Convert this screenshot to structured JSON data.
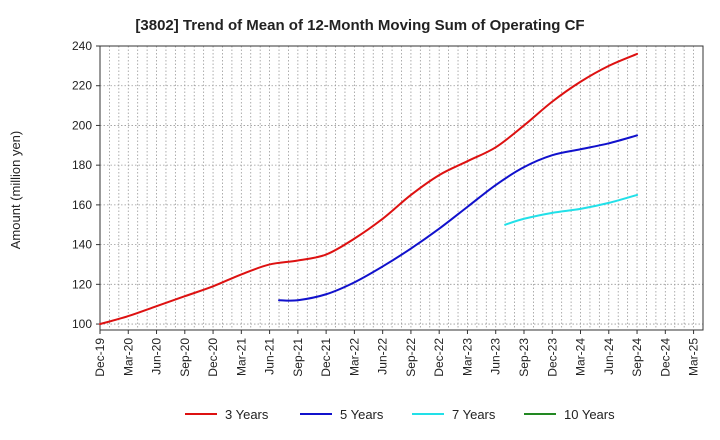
{
  "chart_data": {
    "type": "line",
    "title": "[3802]  Trend of Mean of 12-Month Moving Sum of Operating CF",
    "xlabel": "",
    "ylabel": "Amount (million yen)",
    "ylim": [
      97,
      240
    ],
    "yticks": [
      100,
      120,
      140,
      160,
      180,
      200,
      220,
      240
    ],
    "x_month_count": 64,
    "x_ticks": [
      {
        "label": "Dec-19",
        "index": 0
      },
      {
        "label": "Mar-20",
        "index": 3
      },
      {
        "label": "Jun-20",
        "index": 6
      },
      {
        "label": "Sep-20",
        "index": 9
      },
      {
        "label": "Dec-20",
        "index": 12
      },
      {
        "label": "Mar-21",
        "index": 15
      },
      {
        "label": "Jun-21",
        "index": 18
      },
      {
        "label": "Sep-21",
        "index": 21
      },
      {
        "label": "Dec-21",
        "index": 24
      },
      {
        "label": "Mar-22",
        "index": 27
      },
      {
        "label": "Jun-22",
        "index": 30
      },
      {
        "label": "Sep-22",
        "index": 33
      },
      {
        "label": "Dec-22",
        "index": 36
      },
      {
        "label": "Mar-23",
        "index": 39
      },
      {
        "label": "Jun-23",
        "index": 42
      },
      {
        "label": "Sep-23",
        "index": 45
      },
      {
        "label": "Dec-23",
        "index": 48
      },
      {
        "label": "Mar-24",
        "index": 51
      },
      {
        "label": "Jun-24",
        "index": 54
      },
      {
        "label": "Sep-24",
        "index": 57
      },
      {
        "label": "Dec-24",
        "index": 60
      },
      {
        "label": "Mar-25",
        "index": 63
      }
    ],
    "grid": true,
    "legend_position": "bottom",
    "series": [
      {
        "name": "3 Years",
        "color": "#dd1111",
        "points": [
          [
            0,
            100
          ],
          [
            3,
            104
          ],
          [
            6,
            109
          ],
          [
            9,
            114
          ],
          [
            12,
            119
          ],
          [
            15,
            125
          ],
          [
            18,
            130
          ],
          [
            21,
            132
          ],
          [
            24,
            135
          ],
          [
            27,
            143
          ],
          [
            30,
            153
          ],
          [
            33,
            165
          ],
          [
            36,
            175
          ],
          [
            39,
            182
          ],
          [
            42,
            189
          ],
          [
            45,
            200
          ],
          [
            48,
            212
          ],
          [
            51,
            222
          ],
          [
            54,
            230
          ],
          [
            57,
            236
          ]
        ]
      },
      {
        "name": "5 Years",
        "color": "#1111cc",
        "points": [
          [
            19,
            112
          ],
          [
            21,
            112
          ],
          [
            24,
            115
          ],
          [
            27,
            121
          ],
          [
            30,
            129
          ],
          [
            33,
            138
          ],
          [
            36,
            148
          ],
          [
            39,
            159
          ],
          [
            42,
            170
          ],
          [
            45,
            179
          ],
          [
            48,
            185
          ],
          [
            51,
            188
          ],
          [
            54,
            191
          ],
          [
            57,
            195
          ]
        ]
      },
      {
        "name": "7 Years",
        "color": "#22e0e8",
        "points": [
          [
            43,
            150
          ],
          [
            45,
            153
          ],
          [
            48,
            156
          ],
          [
            51,
            158
          ],
          [
            54,
            161
          ],
          [
            57,
            165
          ]
        ]
      },
      {
        "name": "10 Years",
        "color": "#228822",
        "points": []
      }
    ]
  }
}
